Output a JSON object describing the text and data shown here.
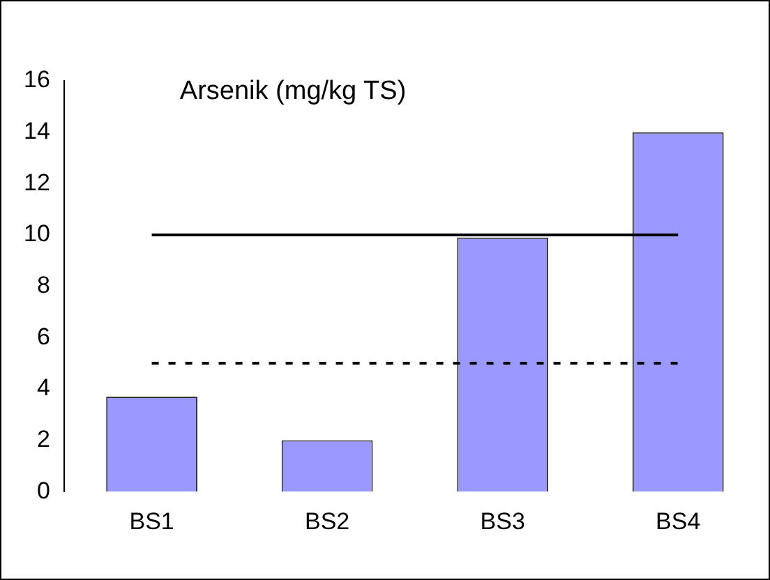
{
  "chart_data": {
    "type": "bar",
    "title": "Arsenik (mg/kg TS)",
    "categories": [
      "BS1",
      "BS2",
      "BS3",
      "BS4"
    ],
    "values": [
      3.7,
      2.0,
      9.9,
      14.0
    ],
    "color": "#9999ff",
    "ylim": [
      0,
      16
    ],
    "yticks": [
      0,
      2,
      4,
      6,
      8,
      10,
      12,
      14,
      16
    ],
    "grid": false,
    "legend": false,
    "ref_lines": [
      {
        "axis": "y",
        "value": 10,
        "color": "#000000",
        "line_style": "solid"
      },
      {
        "axis": "y",
        "value": 5,
        "color": "#000000",
        "line_style": "dotted"
      }
    ]
  }
}
